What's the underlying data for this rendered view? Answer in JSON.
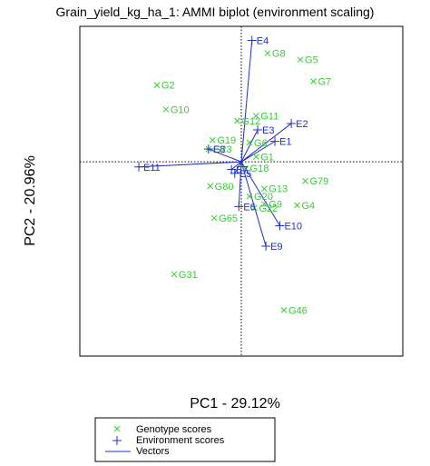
{
  "chart_data": {
    "type": "scatter",
    "title": "Grain_yield_kg_ha_1: AMMI biplot (environment scaling)",
    "xlabel": "PC1 - 29.12%",
    "ylabel": "PC2 - 20.96%",
    "xlim": [
      -1.97,
      1.97
    ],
    "ylim": [
      -1.52,
      1.06
    ],
    "reference_lines": {
      "x": 0,
      "y": 0,
      "style": "dotted"
    },
    "grid": false,
    "colors": {
      "genotype": "#33cc33",
      "environment": "#1f2ecc",
      "vector": "#1f2ecc",
      "frame": "#000000"
    },
    "legend": {
      "position": "bottom",
      "entries": [
        {
          "label": "Genotype scores",
          "symbol": "cross",
          "color": "#33cc33"
        },
        {
          "label": "Environment scores",
          "symbol": "plus",
          "color": "#1f2ecc"
        },
        {
          "label": "Vectors",
          "symbol": "line",
          "color": "#1f2ecc"
        }
      ]
    },
    "series": [
      {
        "name": "Genotype scores",
        "marker": "x",
        "points": [
          {
            "label": "G2",
            "x": -1.03,
            "y": 0.6
          },
          {
            "label": "G10",
            "x": -0.92,
            "y": 0.41
          },
          {
            "label": "G5",
            "x": 0.72,
            "y": 0.8
          },
          {
            "label": "G7",
            "x": 0.88,
            "y": 0.63
          },
          {
            "label": "G8",
            "x": 0.32,
            "y": 0.85
          },
          {
            "label": "G11",
            "x": 0.18,
            "y": 0.36
          },
          {
            "label": "G12",
            "x": -0.05,
            "y": 0.32
          },
          {
            "label": "G6",
            "x": 0.1,
            "y": 0.15
          },
          {
            "label": "G1",
            "x": 0.18,
            "y": 0.04
          },
          {
            "label": "G19",
            "x": -0.35,
            "y": 0.17
          },
          {
            "label": "G23",
            "x": -0.4,
            "y": 0.1
          },
          {
            "label": "G18",
            "x": 0.05,
            "y": -0.05
          },
          {
            "label": "G80",
            "x": -0.38,
            "y": -0.19
          },
          {
            "label": "G65",
            "x": -0.33,
            "y": -0.44
          },
          {
            "label": "G13",
            "x": 0.28,
            "y": -0.21
          },
          {
            "label": "G20",
            "x": 0.1,
            "y": -0.27
          },
          {
            "label": "G9",
            "x": 0.28,
            "y": -0.33
          },
          {
            "label": "G22",
            "x": 0.16,
            "y": -0.36
          },
          {
            "label": "G79",
            "x": 0.78,
            "y": -0.15
          },
          {
            "label": "G4",
            "x": 0.68,
            "y": -0.34
          },
          {
            "label": "G31",
            "x": -0.82,
            "y": -0.88
          },
          {
            "label": "G46",
            "x": 0.52,
            "y": -1.16
          }
        ]
      },
      {
        "name": "Environment scores",
        "marker": "+",
        "vectors_from_origin": true,
        "points": [
          {
            "label": "E4",
            "x": 0.13,
            "y": 0.95
          },
          {
            "label": "E2",
            "x": 0.61,
            "y": 0.3
          },
          {
            "label": "E1",
            "x": 0.41,
            "y": 0.16
          },
          {
            "label": "E3",
            "x": 0.2,
            "y": 0.25
          },
          {
            "label": "E8",
            "x": -0.4,
            "y": 0.1
          },
          {
            "label": "E11",
            "x": -1.25,
            "y": -0.04
          },
          {
            "label": "E7",
            "x": -0.12,
            "y": -0.06
          },
          {
            "label": "E5",
            "x": -0.08,
            "y": -0.09
          },
          {
            "label": "E6",
            "x": -0.03,
            "y": -0.35
          },
          {
            "label": "E10",
            "x": 0.47,
            "y": -0.5
          },
          {
            "label": "E9",
            "x": 0.3,
            "y": -0.66
          }
        ]
      }
    ]
  }
}
